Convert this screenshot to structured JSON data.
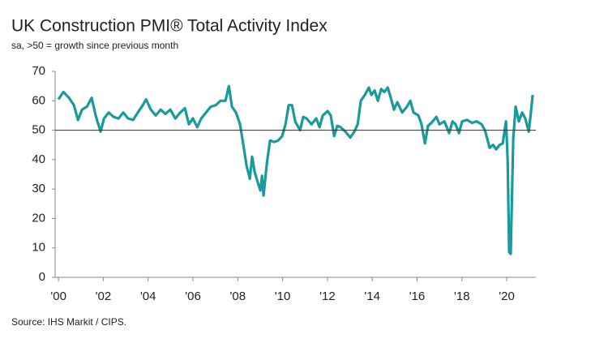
{
  "chart_data": {
    "type": "line",
    "title": "UK Construction PMI® Total Activity Index",
    "subtitle": "sa, >50 = growth since previous month",
    "source": "Source: IHS Markit / CIPS.",
    "x": [
      2000.0,
      2000.22,
      2000.47,
      2000.69,
      2000.87,
      2001.05,
      2001.27,
      2001.48,
      2001.66,
      2001.88,
      2002.03,
      2002.24,
      2002.46,
      2002.68,
      2002.89,
      2003.11,
      2003.33,
      2003.54,
      2003.76,
      2003.91,
      2004.12,
      2004.34,
      2004.56,
      2004.77,
      2004.99,
      2005.21,
      2005.43,
      2005.64,
      2005.82,
      2006.0,
      2006.19,
      2006.37,
      2006.58,
      2006.8,
      2007.02,
      2007.23,
      2007.45,
      2007.6,
      2007.74,
      2007.92,
      2008.1,
      2008.25,
      2008.39,
      2008.54,
      2008.64,
      2008.75,
      2008.9,
      2009.01,
      2009.08,
      2009.15,
      2009.3,
      2009.44,
      2009.62,
      2009.8,
      2009.98,
      2010.13,
      2010.27,
      2010.42,
      2010.56,
      2010.78,
      2010.92,
      2011.07,
      2011.29,
      2011.5,
      2011.65,
      2011.79,
      2012.01,
      2012.15,
      2012.3,
      2012.44,
      2012.59,
      2012.8,
      2013.02,
      2013.2,
      2013.35,
      2013.49,
      2013.67,
      2013.85,
      2013.96,
      2014.11,
      2014.25,
      2014.4,
      2014.54,
      2014.69,
      2014.83,
      2014.97,
      2015.12,
      2015.34,
      2015.55,
      2015.7,
      2015.84,
      2016.06,
      2016.2,
      2016.35,
      2016.49,
      2016.64,
      2016.86,
      2017.0,
      2017.22,
      2017.43,
      2017.58,
      2017.72,
      2017.87,
      2018.01,
      2018.23,
      2018.45,
      2018.66,
      2018.88,
      2019.03,
      2019.24,
      2019.39,
      2019.53,
      2019.68,
      2019.82,
      2019.97,
      2020.04,
      2020.11,
      2020.18,
      2020.29,
      2020.4,
      2020.54,
      2020.69,
      2020.83,
      2020.98,
      2021.05,
      2021.16
    ],
    "series": [
      {
        "color": "#1a9a9b",
        "values": [
          60.5,
          63,
          61,
          58.5,
          53.5,
          57,
          58,
          61,
          55,
          49.5,
          54,
          56,
          54.5,
          54,
          56,
          54,
          53.5,
          56,
          58.5,
          60.5,
          57,
          55,
          57,
          55.5,
          57,
          54,
          56,
          57.5,
          52,
          54,
          51,
          54,
          56,
          58,
          58.5,
          60,
          60,
          65,
          58,
          56,
          52,
          45,
          38,
          33.5,
          41,
          36,
          32,
          29.5,
          34.5,
          27.8,
          39,
          46.5,
          46,
          46.5,
          48,
          52,
          58.5,
          58.5,
          53,
          50,
          54.5,
          54,
          52,
          54,
          51,
          55,
          56.5,
          55,
          48,
          51.5,
          51,
          49.5,
          47.5,
          49.5,
          52,
          60,
          62,
          64.5,
          62,
          63.5,
          60,
          64,
          63,
          64.5,
          61,
          57,
          59.5,
          56,
          58,
          60,
          56,
          55,
          52,
          45.5,
          51.5,
          52.5,
          54.5,
          52,
          53,
          49,
          53,
          52,
          49,
          53,
          53.5,
          52.5,
          53,
          52,
          50,
          44,
          45,
          43.5,
          45,
          45.5,
          53,
          40,
          8.5,
          8,
          47,
          58,
          53,
          56,
          54,
          49.5,
          54,
          62
        ]
      }
    ],
    "xlim": [
      1999.85,
      2021.3
    ],
    "xticks": [
      {
        "value": 2000,
        "label": "'00"
      },
      {
        "value": 2002,
        "label": "'02"
      },
      {
        "value": 2004,
        "label": "'04"
      },
      {
        "value": 2006,
        "label": "'06"
      },
      {
        "value": 2008,
        "label": "'08"
      },
      {
        "value": 2010,
        "label": "'10"
      },
      {
        "value": 2012,
        "label": "'12"
      },
      {
        "value": 2014,
        "label": "'14"
      },
      {
        "value": 2016,
        "label": "'16"
      },
      {
        "value": 2018,
        "label": "'18"
      },
      {
        "value": 2020,
        "label": "'20"
      }
    ],
    "ylim": [
      0,
      70
    ],
    "yticks": [
      0,
      10,
      20,
      30,
      40,
      50,
      60,
      70
    ],
    "reference_line": 50
  }
}
